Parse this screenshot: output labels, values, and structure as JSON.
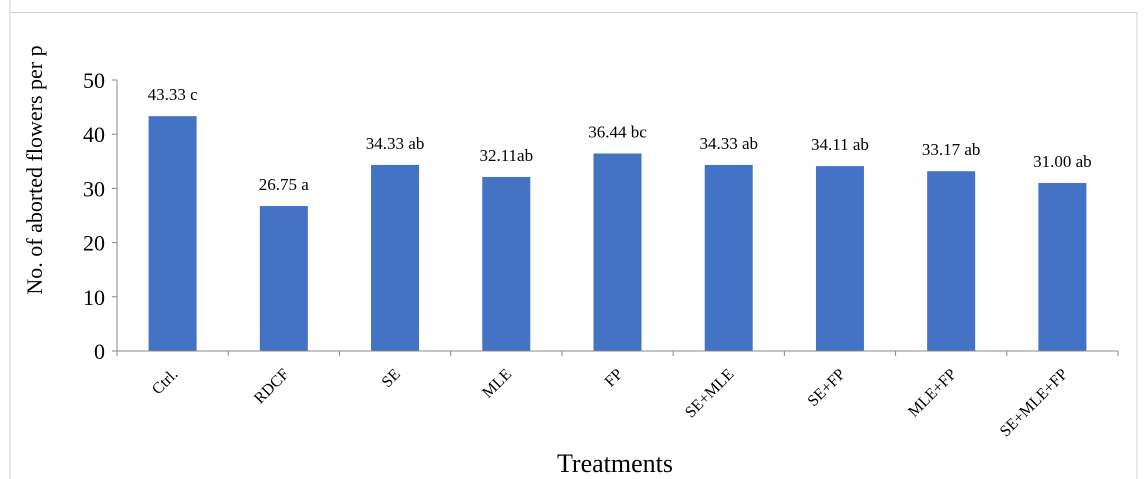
{
  "chart_data": {
    "type": "bar",
    "ylabel": "No. of aborted flowers per p",
    "xlabel": "Treatments",
    "ylim": [
      0,
      50
    ],
    "yticks": [
      0,
      10,
      20,
      30,
      40,
      50
    ],
    "grid": false,
    "legend": "none",
    "bar_color": "#4472C4",
    "categories": [
      "Ctrl.",
      "RDCF",
      "SE",
      "MLE",
      "FP",
      "SE+MLE",
      "SE+FP",
      "MLE+FP",
      "SE+MLE+FP"
    ],
    "values": [
      43.33,
      26.75,
      34.33,
      32.11,
      36.44,
      34.33,
      34.11,
      33.17,
      31.0
    ],
    "data_labels": [
      "43.33 c",
      "26.75 a",
      "34.33 ab",
      "32.11ab",
      "36.44 bc",
      "34.33 ab",
      "34.11 ab",
      "33.17 ab",
      "31.00 ab"
    ]
  }
}
